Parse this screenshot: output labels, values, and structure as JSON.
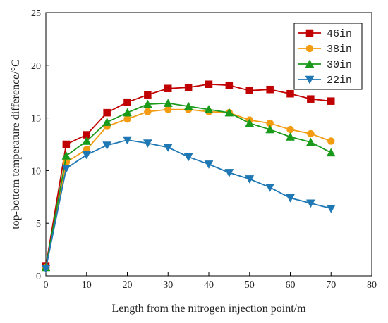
{
  "chart_data": {
    "type": "line",
    "xlabel": "Length from the nitrogen injection point/m",
    "ylabel": "top-bottom temperature difference/°C",
    "xlim": [
      0,
      80
    ],
    "ylim": [
      0,
      25
    ],
    "x_ticks": [
      0,
      10,
      20,
      30,
      40,
      50,
      60,
      70,
      80
    ],
    "y_ticks": [
      0,
      5,
      10,
      15,
      20,
      25
    ],
    "x_tick_labels": [
      "0",
      "10",
      "20",
      "30",
      "40",
      "50",
      "60",
      "70",
      "80"
    ],
    "y_tick_labels": [
      "0",
      "5",
      "10",
      "15",
      "20",
      "25"
    ],
    "grid": false,
    "legend_position": "top-right",
    "x": [
      0,
      5,
      10,
      15,
      20,
      25,
      30,
      35,
      40,
      45,
      50,
      55,
      60,
      65,
      70
    ],
    "series": [
      {
        "name": "46in",
        "color": "#c00000",
        "marker": "square",
        "values": [
          0.9,
          12.5,
          13.4,
          15.5,
          16.5,
          17.2,
          17.8,
          17.9,
          18.2,
          18.1,
          17.6,
          17.7,
          17.3,
          16.8,
          16.6
        ]
      },
      {
        "name": "38in",
        "color": "#f39c12",
        "marker": "circle",
        "values": [
          0.8,
          10.8,
          12.0,
          14.2,
          14.9,
          15.6,
          15.8,
          15.8,
          15.6,
          15.5,
          14.8,
          14.5,
          13.9,
          13.5,
          12.8
        ]
      },
      {
        "name": "30in",
        "color": "#1a9a1a",
        "marker": "triangle-up",
        "values": [
          0.8,
          11.4,
          12.8,
          14.6,
          15.5,
          16.3,
          16.4,
          16.1,
          15.8,
          15.5,
          14.5,
          13.9,
          13.2,
          12.7,
          11.7
        ]
      },
      {
        "name": "22in",
        "color": "#1f78b4",
        "marker": "triangle-down",
        "values": [
          0.7,
          10.2,
          11.5,
          12.4,
          12.9,
          12.6,
          12.2,
          11.3,
          10.6,
          9.8,
          9.2,
          8.4,
          7.4,
          6.9,
          6.4
        ]
      }
    ]
  }
}
